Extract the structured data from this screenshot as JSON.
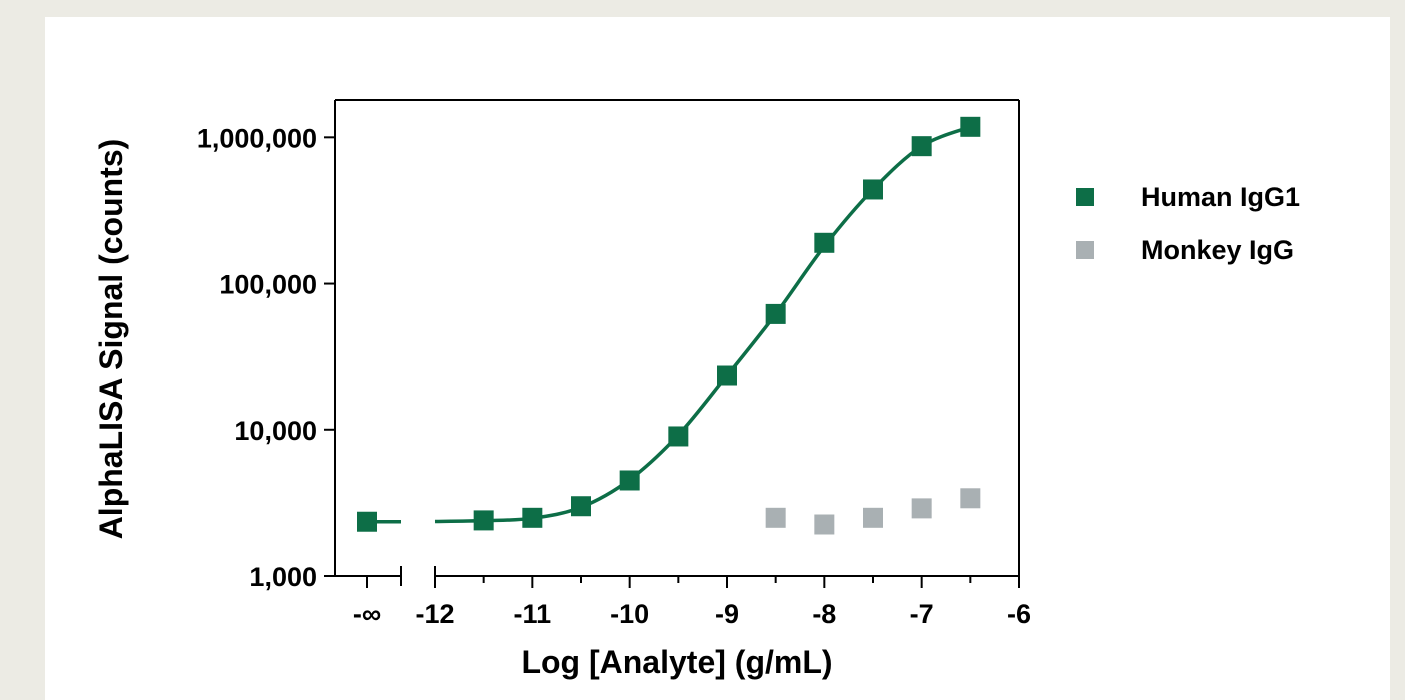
{
  "chart_data": {
    "type": "scatter",
    "xlabel": "Log [Analyte] (g/mL)",
    "ylabel": "AlphaLISA Signal (counts)",
    "x_tick_labels": [
      "-∞",
      "-12",
      "-11",
      "-10",
      "-9",
      "-8",
      "-7",
      "-6"
    ],
    "y_tick_labels": [
      "1,000",
      "10,000",
      "100,000",
      "1,000,000"
    ],
    "y_scale": "log",
    "ylim": [
      1000,
      1800000
    ],
    "xlim_main": [
      -12,
      -6
    ],
    "x_break_label": "-∞",
    "grid": false,
    "legend_position": "right",
    "series": [
      {
        "name": "Human IgG1",
        "color": "#0d6e47",
        "marker": "square",
        "fit_curve": true,
        "points": [
          {
            "x": "-∞",
            "y": 2350
          },
          {
            "x": -11.5,
            "y": 2400
          },
          {
            "x": -11,
            "y": 2500
          },
          {
            "x": -10.5,
            "y": 3000
          },
          {
            "x": -10,
            "y": 4500
          },
          {
            "x": -9.5,
            "y": 9000
          },
          {
            "x": -9,
            "y": 23500
          },
          {
            "x": -8.5,
            "y": 62000
          },
          {
            "x": -8,
            "y": 190000
          },
          {
            "x": -7.5,
            "y": 440000
          },
          {
            "x": -7,
            "y": 870000
          },
          {
            "x": -6.5,
            "y": 1180000
          }
        ]
      },
      {
        "name": "Monkey IgG",
        "color": "#a9b0b3",
        "marker": "square",
        "fit_curve": false,
        "points": [
          {
            "x": -8.5,
            "y": 2500
          },
          {
            "x": -8,
            "y": 2250
          },
          {
            "x": -7.5,
            "y": 2500
          },
          {
            "x": -7,
            "y": 2900
          },
          {
            "x": -6.5,
            "y": 3400
          }
        ]
      }
    ],
    "fit_curve_points": [
      {
        "x": "-∞",
        "y": 2350
      },
      {
        "x": -12,
        "y": 2360
      },
      {
        "x": -11.5,
        "y": 2390
      },
      {
        "x": -11,
        "y": 2480
      },
      {
        "x": -10.5,
        "y": 2950
      },
      {
        "x": -10,
        "y": 4550
      },
      {
        "x": -9.5,
        "y": 9200
      },
      {
        "x": -9,
        "y": 23500
      },
      {
        "x": -8.5,
        "y": 62000
      },
      {
        "x": -8,
        "y": 180000
      },
      {
        "x": -7.5,
        "y": 440000
      },
      {
        "x": -7,
        "y": 870000
      },
      {
        "x": -6.5,
        "y": 1180000
      }
    ]
  }
}
